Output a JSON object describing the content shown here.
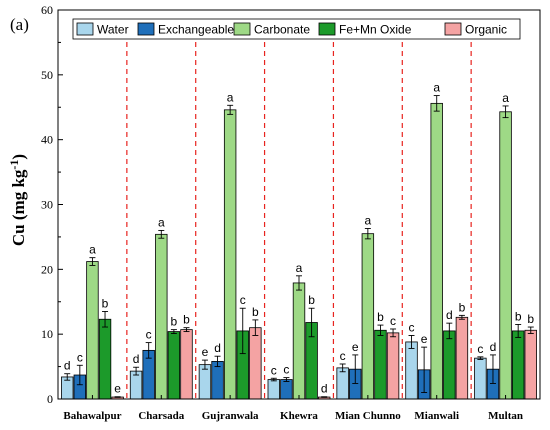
{
  "chart_data": {
    "type": "bar",
    "panel_label": "(a)",
    "ylabel": "Cu (mg kg",
    "ylabel_sup": "-1",
    "ylabel_close": ")",
    "ylim": [
      0,
      60
    ],
    "yticks": [
      "0",
      "10",
      "20",
      "30",
      "40",
      "50",
      "60"
    ],
    "categories": [
      "Bahawalpur",
      "Charsada",
      "Gujranwala",
      "Khewra",
      "Mian Chunno",
      "Mianwali",
      "Multan"
    ],
    "legend_position": "top",
    "series": [
      {
        "name": "Water",
        "color": "#a9d6ec",
        "values": [
          3.4,
          4.3,
          5.3,
          3.0,
          4.8,
          8.8,
          6.3
        ],
        "errors": [
          0.5,
          0.6,
          0.7,
          0.2,
          0.6,
          1.0,
          0.2
        ],
        "letters": [
          "d",
          "d",
          "e",
          "c",
          "c",
          "c",
          "c"
        ]
      },
      {
        "name": "Exchangeable",
        "color": "#1f6fba",
        "values": [
          3.7,
          7.5,
          5.8,
          3.0,
          4.6,
          4.5,
          4.6
        ],
        "errors": [
          1.5,
          1.2,
          0.8,
          0.3,
          2.2,
          3.5,
          2.2
        ],
        "letters": [
          "c",
          "c",
          "d",
          "c",
          "e",
          "e",
          "d"
        ]
      },
      {
        "name": "Carbonate",
        "color": "#9ed986",
        "values": [
          21.2,
          25.4,
          44.6,
          17.9,
          25.5,
          45.6,
          44.3
        ],
        "errors": [
          0.6,
          0.6,
          0.7,
          1.1,
          0.8,
          1.2,
          0.9
        ],
        "letters": [
          "a",
          "a",
          "a",
          "a",
          "a",
          "a",
          "a"
        ]
      },
      {
        "name": "Fe+Mn Oxide",
        "color": "#1c9a2a",
        "values": [
          12.3,
          10.4,
          10.5,
          11.8,
          10.6,
          10.5,
          10.5
        ],
        "errors": [
          1.2,
          0.3,
          3.5,
          2.2,
          0.8,
          1.2,
          1.0
        ],
        "letters": [
          "b",
          "b",
          "c",
          "b",
          "b",
          "d",
          "b"
        ]
      },
      {
        "name": "Organic",
        "color": "#f4a3a3",
        "values": [
          0.3,
          10.7,
          11.0,
          0.3,
          10.2,
          12.6,
          10.6
        ],
        "errors": [
          0.05,
          0.3,
          1.2,
          0.05,
          0.6,
          0.3,
          0.5
        ],
        "letters": [
          "e",
          "b",
          "b",
          "d",
          "c",
          "b",
          "b"
        ]
      }
    ]
  }
}
